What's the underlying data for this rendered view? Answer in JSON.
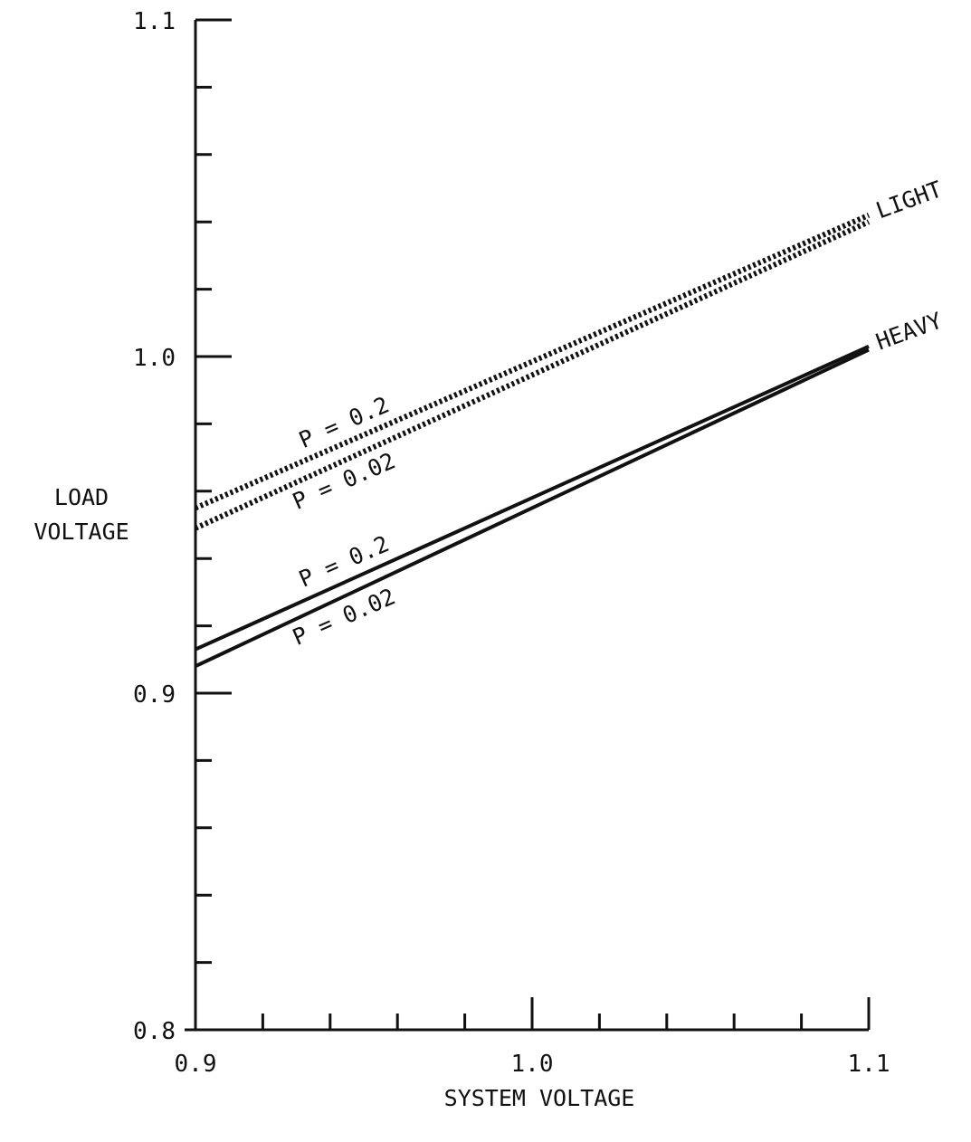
{
  "chart_data": {
    "type": "line",
    "title": "",
    "xlabel": "SYSTEM VOLTAGE",
    "ylabel_lines": [
      "LOAD",
      "VOLTAGE"
    ],
    "xlim": [
      0.9,
      1.1
    ],
    "ylim": [
      0.8,
      1.1
    ],
    "x_tick_labels": [
      {
        "value": 0.9,
        "label": "0.9"
      },
      {
        "value": 1.0,
        "label": "1.0"
      },
      {
        "value": 1.1,
        "label": "1.1"
      }
    ],
    "x_minor_ticks": [
      0.92,
      0.94,
      0.96,
      0.98,
      1.02,
      1.04,
      1.06,
      1.08
    ],
    "y_tick_labels": [
      {
        "value": 0.8,
        "label": "0.8"
      },
      {
        "value": 0.9,
        "label": "0.9"
      },
      {
        "value": 1.0,
        "label": "1.0"
      },
      {
        "value": 1.1,
        "label": "1.1"
      }
    ],
    "y_minor_ticks": [
      0.82,
      0.84,
      0.86,
      0.88,
      0.92,
      0.94,
      0.96,
      0.98,
      1.02,
      1.04,
      1.06,
      1.08
    ],
    "grid": false,
    "legend": "none",
    "series": [
      {
        "group": "LIGHT",
        "label": "P = 0.2",
        "style": "dotted",
        "x": [
          0.9,
          1.1
        ],
        "y": [
          0.955,
          1.042
        ]
      },
      {
        "group": "LIGHT",
        "label": "P = 0.02",
        "style": "dotted",
        "x": [
          0.9,
          1.1
        ],
        "y": [
          0.949,
          1.04
        ]
      },
      {
        "group": "HEAVY",
        "label": "P = 0.2",
        "style": "solid",
        "x": [
          0.9,
          1.1
        ],
        "y": [
          0.913,
          1.003
        ]
      },
      {
        "group": "HEAVY",
        "label": "P = 0.02",
        "style": "solid",
        "x": [
          0.9,
          1.1
        ],
        "y": [
          0.908,
          1.002
        ]
      }
    ],
    "group_labels": [
      "LIGHT",
      "HEAVY"
    ],
    "line_color": "#111111"
  }
}
